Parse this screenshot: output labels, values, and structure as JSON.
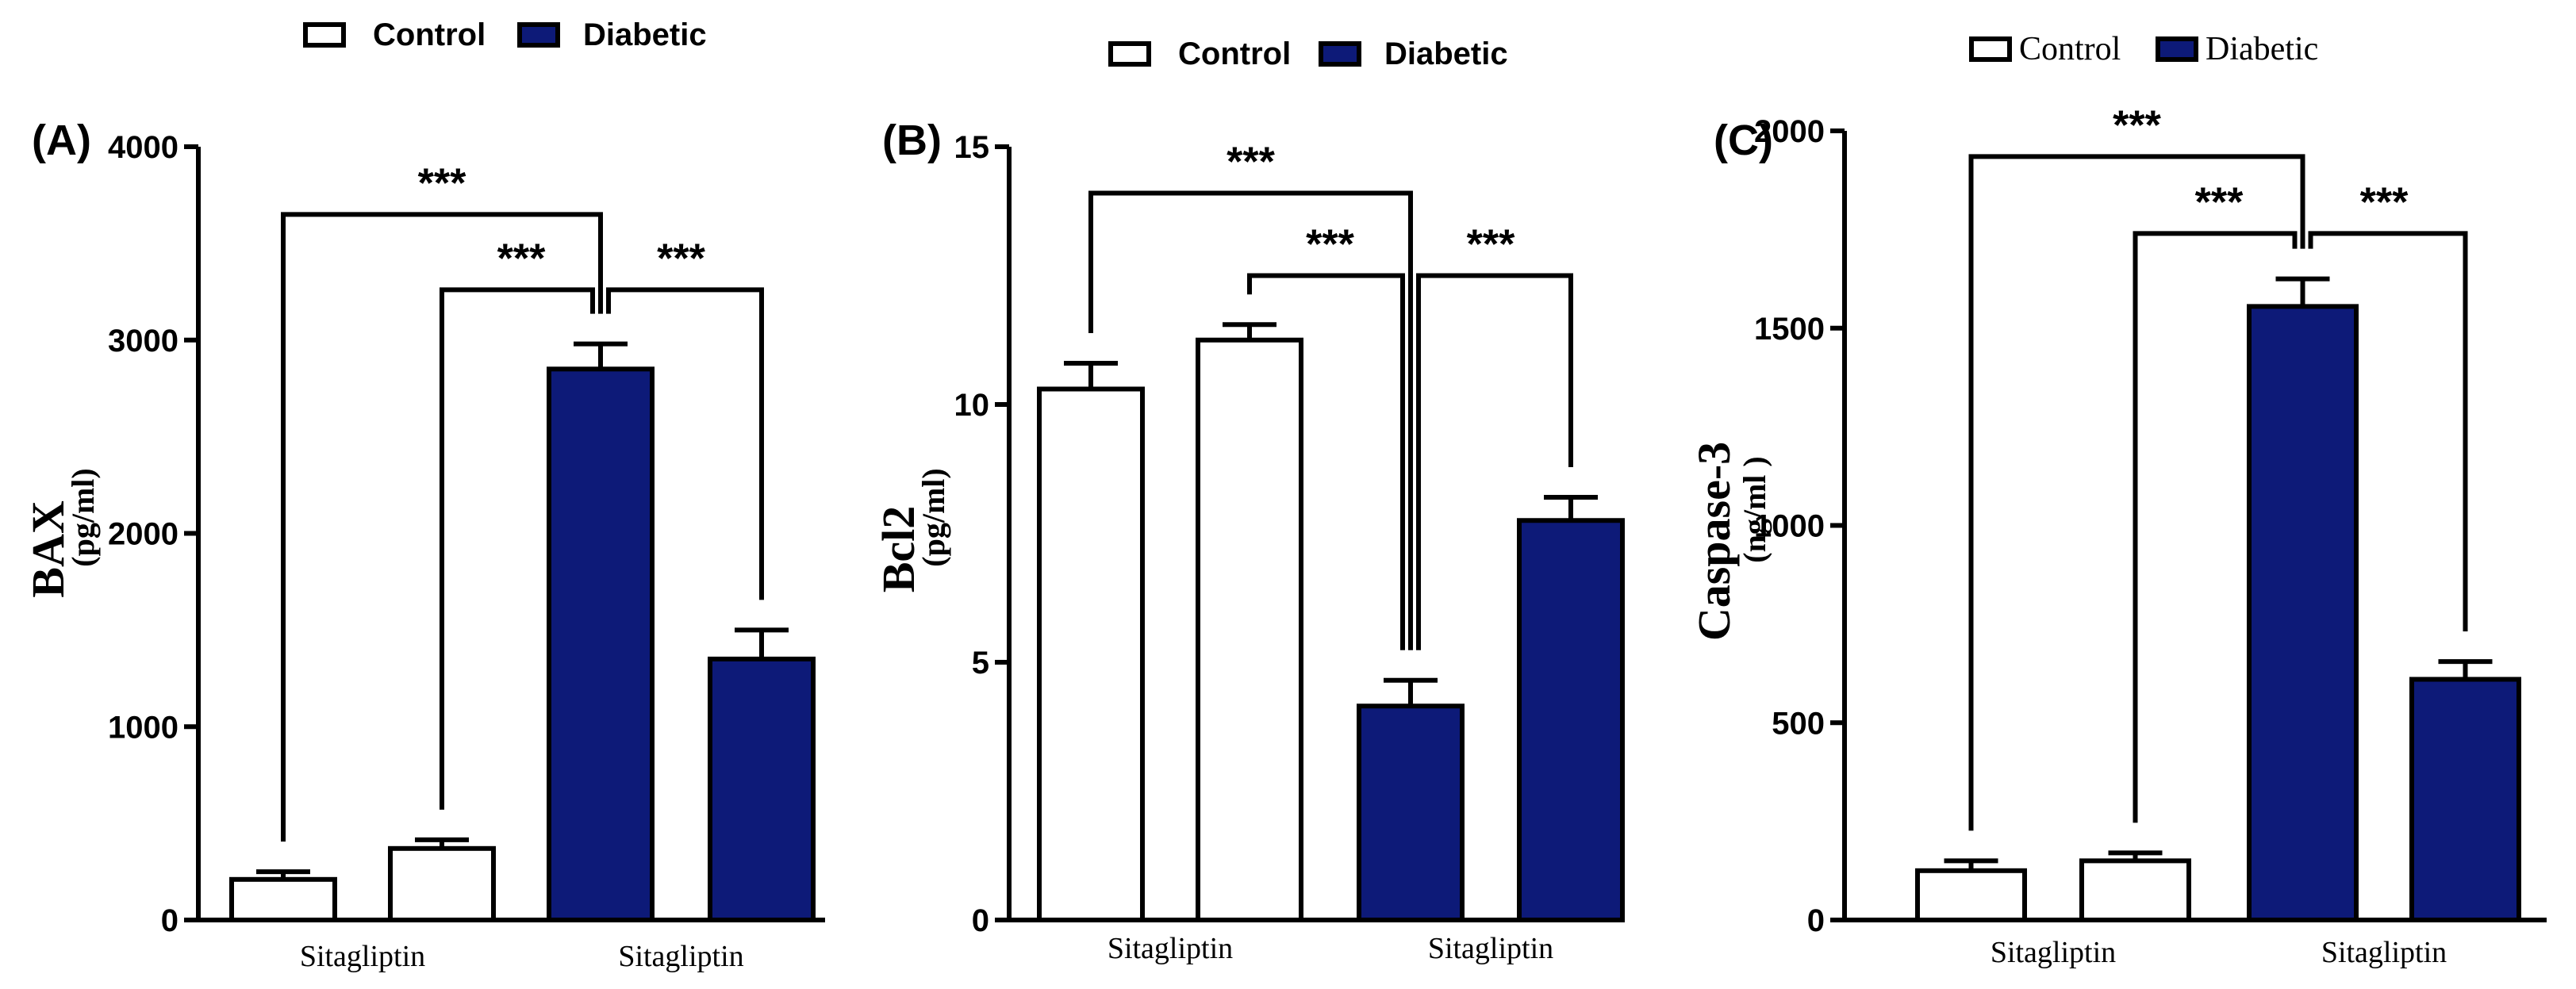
{
  "colors": {
    "control": "#ffffff",
    "diabetic": "#0d1a78",
    "ink": "#000000"
  },
  "legend": {
    "control": "Control",
    "diabetic": "Diabetic"
  },
  "chart_data": [
    {
      "type": "bar",
      "panel_label": "(A)",
      "ylabel": "BAX",
      "yunit": "(pg/ml)",
      "ylim": [
        0,
        4000
      ],
      "yticks": [
        0,
        1000,
        2000,
        3000,
        4000
      ],
      "groups": [
        {
          "name": "Control",
          "value": 210,
          "error": 40,
          "color_key": "control"
        },
        {
          "name": "Control + Sitagliptin",
          "value": 370,
          "error": 45,
          "color_key": "control"
        },
        {
          "name": "Diabetic",
          "value": 2850,
          "error": 130,
          "color_key": "diabetic"
        },
        {
          "name": "Diabetic + Sitagliptin",
          "value": 1350,
          "error": 150,
          "color_key": "diabetic"
        }
      ],
      "xlabels": [
        {
          "text": "Sitagliptin",
          "between": [
            0,
            1
          ]
        },
        {
          "text": "Sitagliptin",
          "between": [
            2,
            3
          ]
        }
      ],
      "significance": [
        {
          "from": 0,
          "to": 2,
          "label": "***",
          "level": 3650
        },
        {
          "from": 1,
          "to": 2,
          "label": "***",
          "level": 3260
        },
        {
          "from": 2,
          "to": 3,
          "label": "***",
          "level": 3260
        }
      ]
    },
    {
      "type": "bar",
      "panel_label": "(B)",
      "ylabel": "Bcl2",
      "yunit": "(pg/ml)",
      "ylim": [
        0,
        15
      ],
      "yticks": [
        0,
        5,
        10,
        15
      ],
      "groups": [
        {
          "name": "Control",
          "value": 10.3,
          "error": 0.5,
          "color_key": "control"
        },
        {
          "name": "Control + Sitagliptin",
          "value": 11.25,
          "error": 0.3,
          "color_key": "control"
        },
        {
          "name": "Diabetic",
          "value": 4.15,
          "error": 0.5,
          "color_key": "diabetic"
        },
        {
          "name": "Diabetic + Sitagliptin",
          "value": 7.75,
          "error": 0.45,
          "color_key": "diabetic"
        }
      ],
      "xlabels": [
        {
          "text": "Sitagliptin",
          "between": [
            0,
            1
          ]
        },
        {
          "text": "Sitagliptin",
          "between": [
            2,
            3
          ]
        }
      ],
      "significance": [
        {
          "from": 0,
          "to": 2,
          "label": "***",
          "level": 14.1
        },
        {
          "from": 1,
          "to": 2,
          "label": "***",
          "level": 12.5
        },
        {
          "from": 2,
          "to": 3,
          "label": "***",
          "level": 12.5
        }
      ]
    },
    {
      "type": "bar",
      "panel_label": "(C)",
      "ylabel": "Caspase-3",
      "yunit": "(ng/ml )",
      "ylim": [
        0,
        2000
      ],
      "yticks": [
        0,
        500,
        1000,
        1500,
        2000
      ],
      "groups": [
        {
          "name": "Control",
          "value": 125,
          "error": 25,
          "color_key": "control"
        },
        {
          "name": "Control + Sitagliptin",
          "value": 150,
          "error": 20,
          "color_key": "control"
        },
        {
          "name": "Diabetic",
          "value": 1555,
          "error": 70,
          "color_key": "diabetic"
        },
        {
          "name": "Diabetic + Sitagliptin",
          "value": 610,
          "error": 45,
          "color_key": "diabetic"
        }
      ],
      "xlabels": [
        {
          "text": "Sitagliptin",
          "between": [
            0,
            1
          ]
        },
        {
          "text": "Sitagliptin",
          "between": [
            2,
            3
          ]
        }
      ],
      "significance": [
        {
          "from": 0,
          "to": 2,
          "label": "***",
          "level": 1935
        },
        {
          "from": 1,
          "to": 2,
          "label": "***",
          "level": 1740
        },
        {
          "from": 2,
          "to": 3,
          "label": "***",
          "level": 1740
        }
      ]
    }
  ]
}
